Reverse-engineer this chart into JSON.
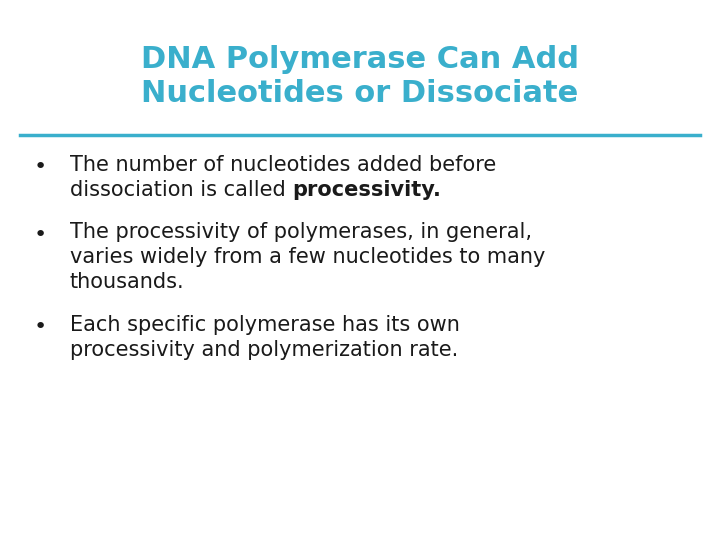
{
  "title_line1": "DNA Polymerase Can Add",
  "title_line2": "Nucleotides or Dissociate",
  "title_color": "#3AAFCC",
  "title_fontsize": 22,
  "divider_color": "#3AAFCC",
  "background_color": "#FFFFFF",
  "text_color": "#1a1a1a",
  "body_fontsize": 15,
  "bullet_fontsize": 15,
  "bullets": [
    {
      "lines": [
        {
          "text": "The number of nucleotides added before",
          "bold": false
        },
        {
          "text": "dissociation is called ",
          "bold": false,
          "inline_bold": "processivity."
        }
      ]
    },
    {
      "lines": [
        {
          "text": "The processivity of polymerases, in general,",
          "bold": false
        },
        {
          "text": "varies widely from a few nucleotides to many",
          "bold": false
        },
        {
          "text": "thousands.",
          "bold": false
        }
      ]
    },
    {
      "lines": [
        {
          "text": "Each specific polymerase has its own",
          "bold": false
        },
        {
          "text": "processivity and polymerization rate.",
          "bold": false
        }
      ]
    }
  ]
}
